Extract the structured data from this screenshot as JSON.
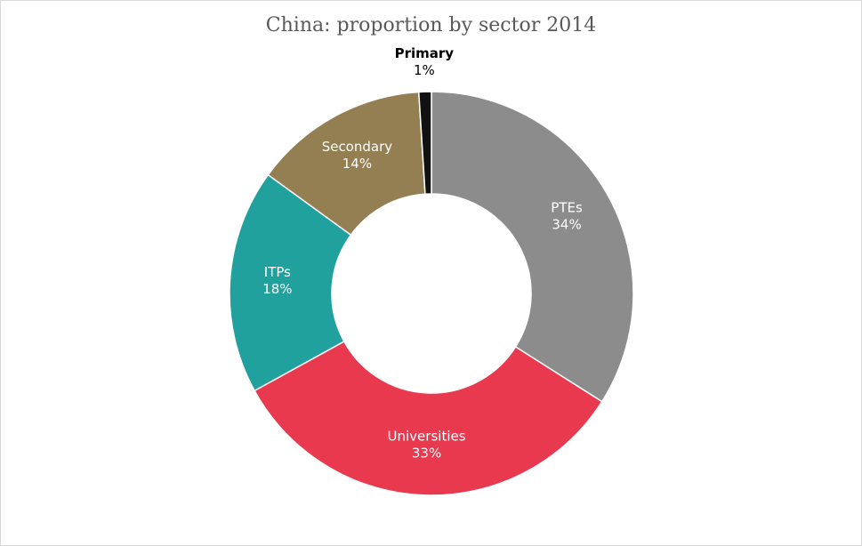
{
  "chart_data": {
    "type": "pie",
    "variant": "donut",
    "title": "China: proportion by sector 2014",
    "legend": "none",
    "slices": [
      {
        "label": "PTEs",
        "value": 34,
        "display": "34%",
        "color": "#8c8c8c",
        "label_color": "#ffffff"
      },
      {
        "label": "Universities",
        "value": 33,
        "display": "33%",
        "color": "#e8394f",
        "label_color": "#ffffff"
      },
      {
        "label": "ITPs",
        "value": 18,
        "display": "18%",
        "color": "#21a19e",
        "label_color": "#ffffff"
      },
      {
        "label": "Secondary",
        "value": 14,
        "display": "14%",
        "color": "#947f52",
        "label_color": "#ffffff"
      },
      {
        "label": "Primary",
        "value": 1,
        "display": "1%",
        "color": "#111111",
        "label_color": "#000000"
      }
    ]
  }
}
